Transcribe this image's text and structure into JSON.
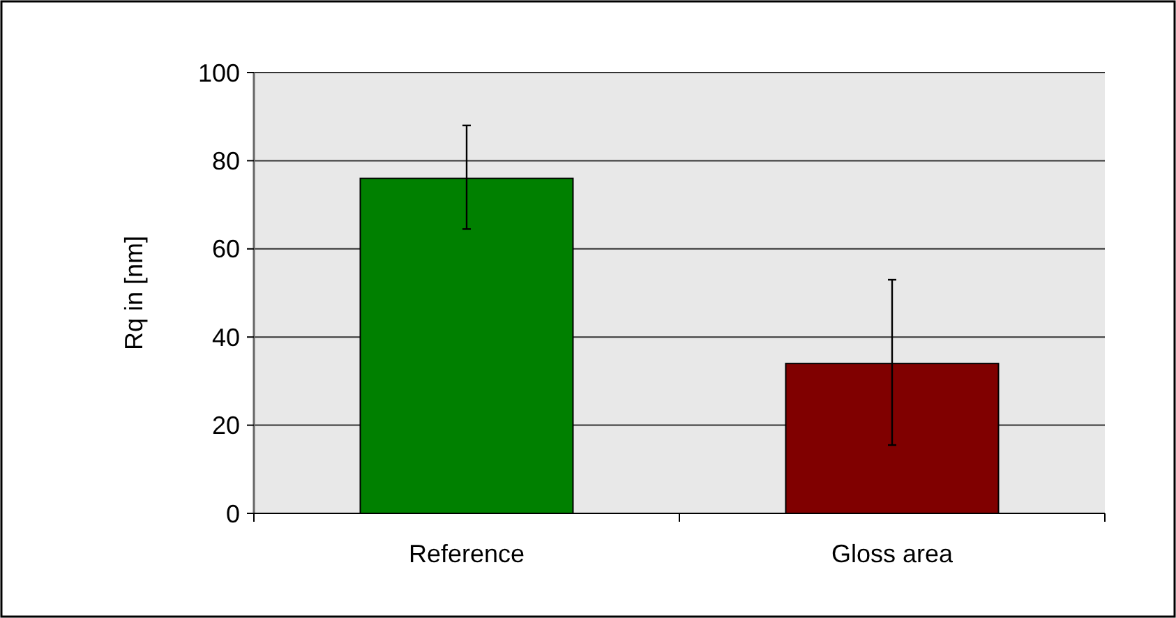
{
  "chart_data": {
    "type": "bar",
    "ylabel": "Rq in [nm]",
    "categories": [
      "Reference",
      "Gloss area"
    ],
    "values": [
      76,
      34
    ],
    "colors": [
      "#008000",
      "#800000"
    ],
    "errors": [
      [
        64.5,
        88
      ],
      [
        15.5,
        53
      ]
    ],
    "ylim": [
      0,
      100
    ],
    "yticks": [
      0,
      20,
      40,
      60,
      80,
      100
    ],
    "grid": "y"
  }
}
